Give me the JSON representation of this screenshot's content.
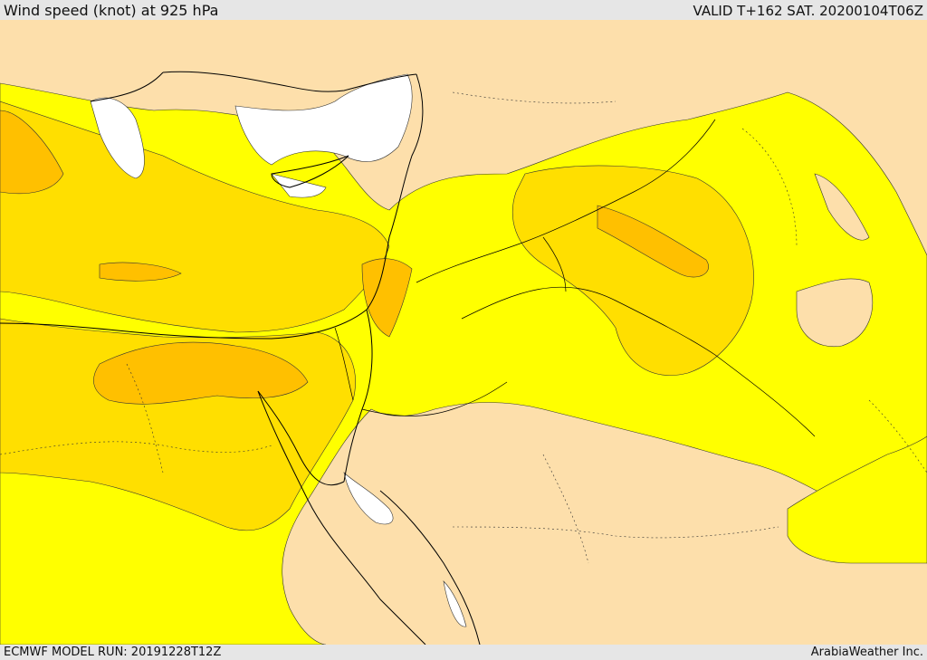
{
  "header": {
    "title": "Wind speed (knot) at 925 hPa",
    "valid_time": "VALID T+162 SAT. 20200104T06Z"
  },
  "footer": {
    "model_run": "ECMWF MODEL RUN: 20191228T12Z",
    "brand": "ArabiaWeather Inc."
  },
  "colors": {
    "background": "#e6e6e6",
    "land_calm": "#fddfab",
    "yellow": "#ffff00",
    "gold": "#ffdf00",
    "orange_gold": "#ffc000",
    "calm_white": "#ffffff",
    "coastline": "#000000",
    "border": "#000000"
  }
}
